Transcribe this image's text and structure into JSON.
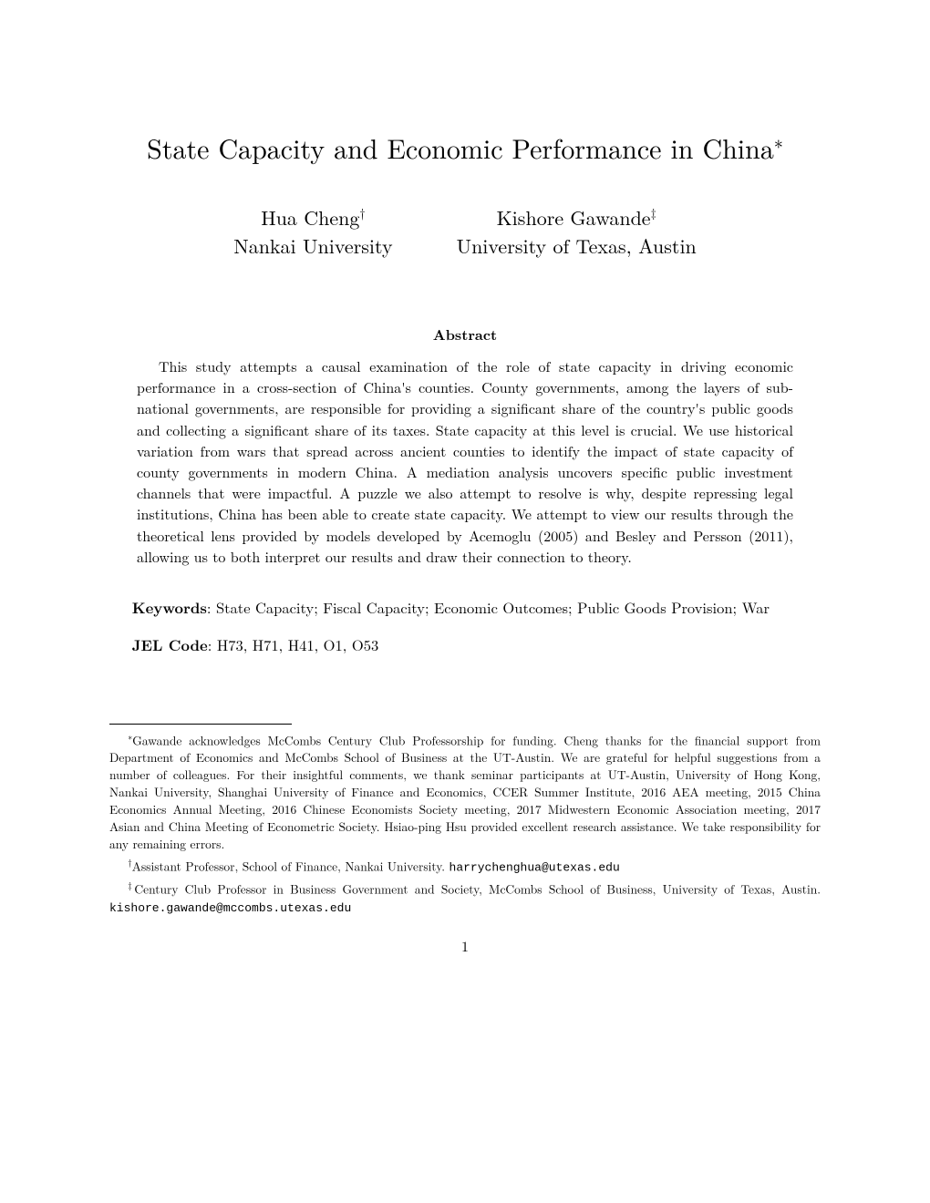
{
  "title": "State Capacity and Economic Performance in China",
  "title_marker": "∗",
  "authors": [
    {
      "name": "Hua Cheng",
      "marker": "†",
      "affiliation": "Nankai University"
    },
    {
      "name": "Kishore Gawande",
      "marker": "‡",
      "affiliation": "University of Texas, Austin"
    }
  ],
  "abstract_heading": "Abstract",
  "abstract_text": "This study attempts a causal examination of the role of state capacity in driving economic performance in a cross-section of China's counties. County governments, among the layers of sub-national governments, are responsible for providing a significant share of the country's public goods and collecting a significant share of its taxes. State capacity at this level is crucial. We use historical variation from wars that spread across ancient counties to identify the impact of state capacity of county governments in modern China. A mediation analysis uncovers specific public investment channels that were impactful. A puzzle we also attempt to resolve is why, despite repressing legal institutions, China has been able to create state capacity. We attempt to view our results through the theoretical lens provided by models developed by Acemoglu (2005) and Besley and Persson (2011), allowing us to both interpret our results and draw their connection to theory.",
  "keywords_label": "Keywords",
  "keywords_text": ": State Capacity; Fiscal Capacity; Economic Outcomes; Public Goods Provision; War",
  "jel_label": "JEL Code",
  "jel_text": ": H73, H71, H41, O1, O53",
  "footnotes": {
    "ack_marker": "∗",
    "ack_text": "Gawande acknowledges McCombs Century Club Professorship for funding. Cheng thanks for the financial support from Department of Economics and McCombs School of Business at the UT-Austin. We are grateful for helpful suggestions from a number of colleagues. For their insightful comments, we thank seminar participants at UT-Austin, University of Hong Kong, Nankai University, Shanghai University of Finance and Economics, CCER Summer Institute, 2016 AEA meeting, 2015 China Economics Annual Meeting, 2016 Chinese Economists Society meeting, 2017 Midwestern Economic Association meeting, 2017 Asian and China Meeting of Econometric Society. Hsiao-ping Hsu provided excellent research assistance. We take responsibility for any remaining errors.",
    "auth1_marker": "†",
    "auth1_text": "Assistant Professor, School of Finance, Nankai University. ",
    "auth1_email": "harrychenghua@utexas.edu",
    "auth2_marker": "‡",
    "auth2_text": "Century Club Professor in Business Government and Society, McCombs School of Business, University of Texas, Austin. ",
    "auth2_email": "kishore.gawande@mccombs.utexas.edu"
  },
  "page_number": "1",
  "colors": {
    "background": "#ffffff",
    "text": "#000000",
    "rule": "#000000"
  },
  "typography": {
    "title_fontsize": 30,
    "author_fontsize": 22,
    "abstract_heading_fontsize": 16,
    "body_fontsize": 16,
    "footnote_fontsize": 13.5,
    "font_family": "Computer Modern"
  }
}
